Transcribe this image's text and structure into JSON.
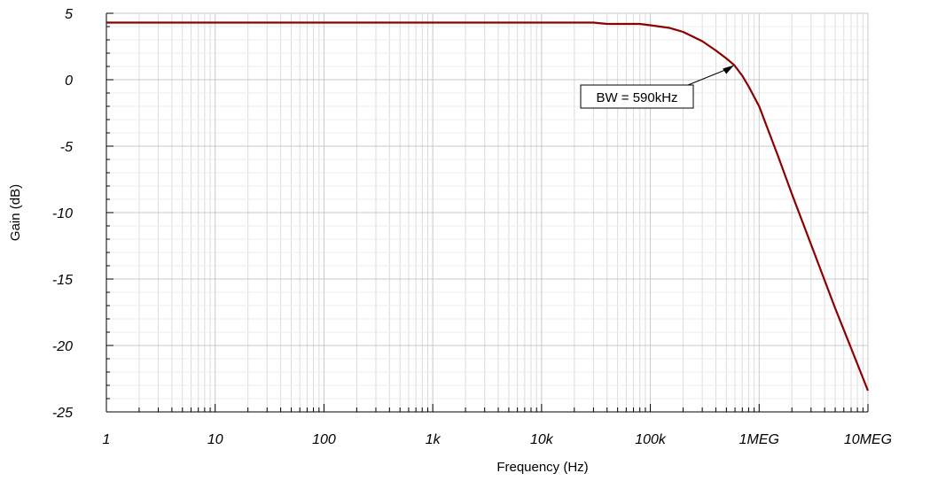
{
  "chart_data": {
    "type": "line",
    "xlabel": "Frequency (Hz)",
    "ylabel": "Gain (dB)",
    "x_scale": "log",
    "xlim": [
      1,
      10000000
    ],
    "ylim": [
      -25,
      5
    ],
    "grid": true,
    "x_ticks": [
      {
        "value": 1,
        "label": "1"
      },
      {
        "value": 10,
        "label": "10"
      },
      {
        "value": 100,
        "label": "100"
      },
      {
        "value": 1000,
        "label": "1k"
      },
      {
        "value": 10000,
        "label": "10k"
      },
      {
        "value": 100000,
        "label": "100k"
      },
      {
        "value": 1000000,
        "label": "1MEG"
      },
      {
        "value": 10000000,
        "label": "10MEG"
      }
    ],
    "y_ticks": [
      {
        "value": 5,
        "label": "5"
      },
      {
        "value": 0,
        "label": "0"
      },
      {
        "value": -5,
        "label": "-5"
      },
      {
        "value": -10,
        "label": "-10"
      },
      {
        "value": -15,
        "label": "-15"
      },
      {
        "value": -20,
        "label": "-20"
      },
      {
        "value": -25,
        "label": "-25"
      }
    ],
    "series": [
      {
        "color": "#8b0000",
        "x": [
          1,
          10,
          100,
          1000,
          10000,
          30000,
          40000,
          80000,
          100000,
          150000,
          200000,
          300000,
          400000,
          500000,
          590000,
          700000,
          800000,
          1000000,
          1500000,
          2000000,
          3000000,
          5000000,
          7000000,
          10000000
        ],
        "y": [
          4.3,
          4.3,
          4.3,
          4.3,
          4.3,
          4.3,
          4.2,
          4.2,
          4.1,
          3.9,
          3.6,
          2.9,
          2.2,
          1.6,
          1.1,
          0.3,
          -0.5,
          -2.0,
          -5.8,
          -8.6,
          -12.4,
          -17.2,
          -20.2,
          -23.4
        ]
      }
    ],
    "annotations": [
      {
        "text": "BW = 590kHz",
        "x": 590000,
        "y": 1.1
      }
    ]
  }
}
